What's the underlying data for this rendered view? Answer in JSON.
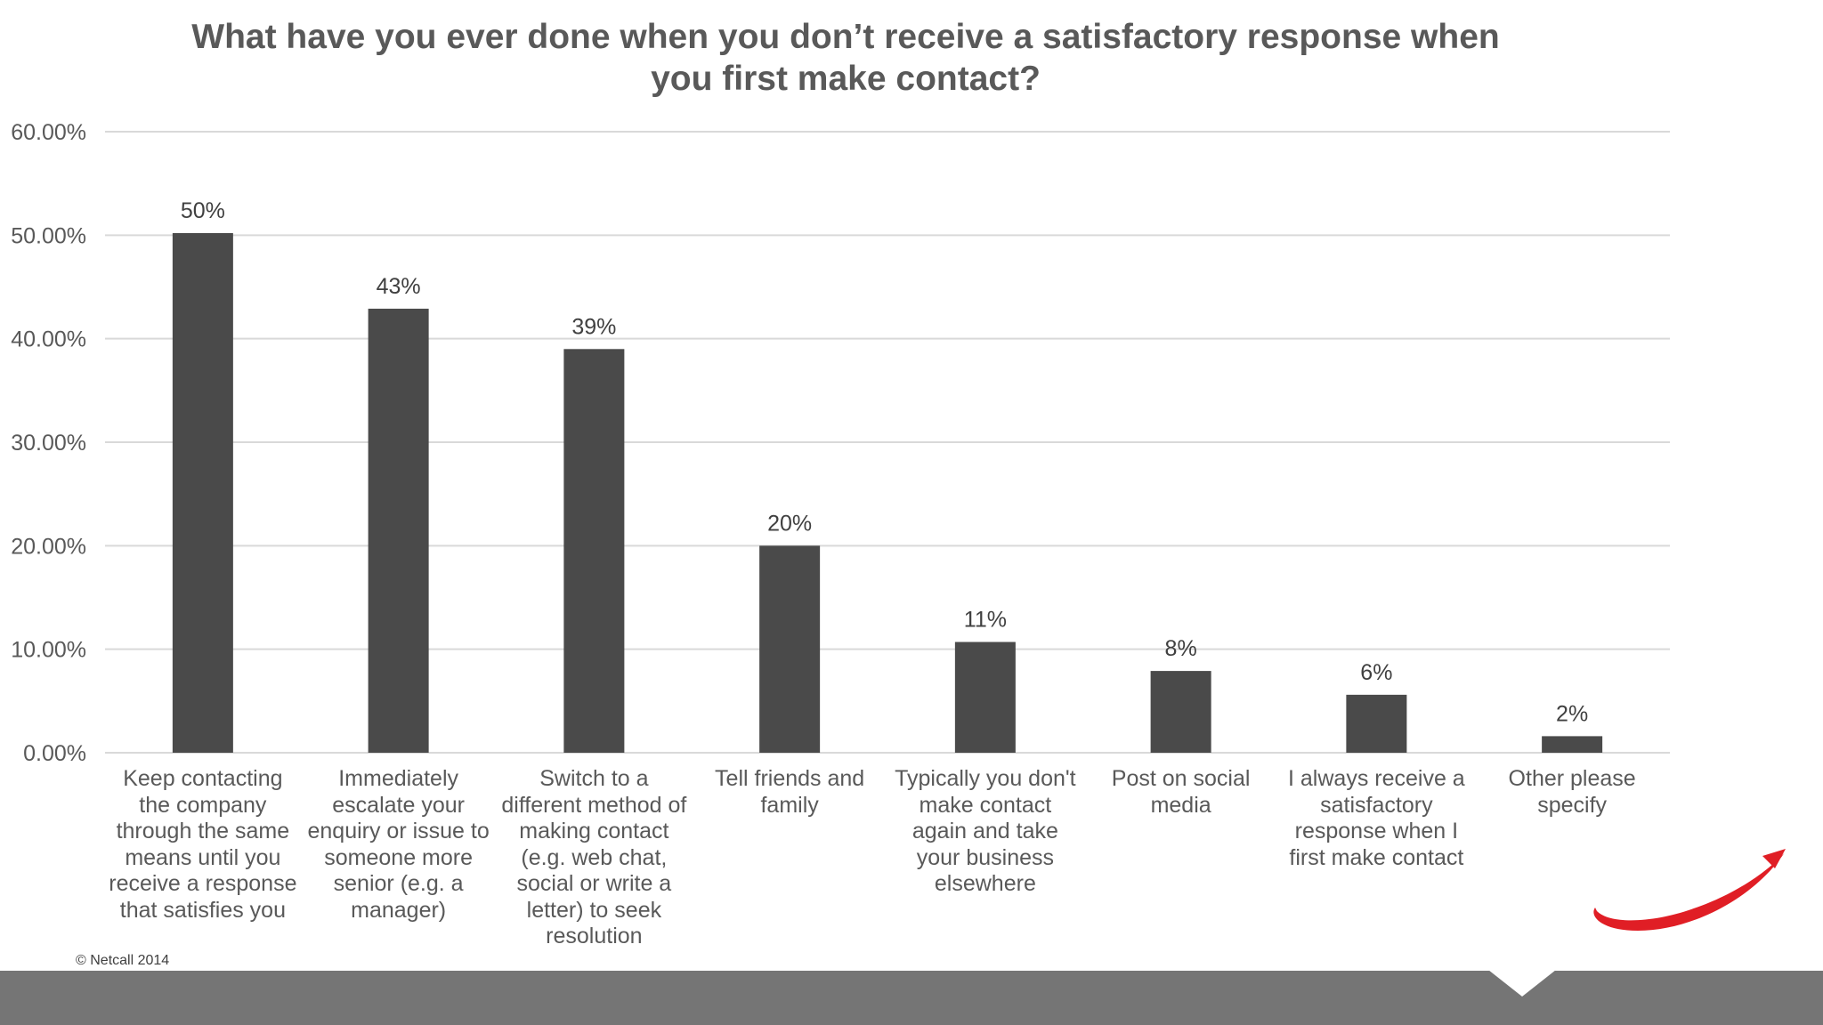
{
  "colors": {
    "bar": "#4a4a4a",
    "grid": "#d9d9d9",
    "text": "#595959",
    "footer": "#757575",
    "logo": "#e01e25"
  },
  "icons": {
    "logo": "netcall-swoosh-logo"
  },
  "footer": {
    "copyright": "© Netcall 2014"
  },
  "chart_data": {
    "type": "bar",
    "title_lines": [
      "What have you ever done when you don’t receive a satisfactory response when",
      "you first make contact?"
    ],
    "categories": [
      [
        "Keep contacting",
        "the company",
        "through the same",
        "means until you",
        "receive a response",
        "that satisfies you"
      ],
      [
        "Immediately",
        "escalate your",
        "enquiry or issue to",
        "someone more",
        "senior (e.g. a",
        "manager)"
      ],
      [
        "Switch to a",
        "different method of",
        "making contact",
        "(e.g. web chat,",
        "social or write a",
        "letter) to seek",
        "resolution"
      ],
      [
        "Tell friends and",
        "family"
      ],
      [
        "Typically you don't",
        "make contact",
        "again and take",
        "your business",
        "elsewhere"
      ],
      [
        "Post on social",
        "media"
      ],
      [
        "I always receive a",
        "satisfactory",
        "response when I",
        "first make contact"
      ],
      [
        "Other  please",
        "specify"
      ]
    ],
    "values": [
      50.2,
      42.9,
      39.0,
      20.0,
      10.7,
      7.9,
      5.6,
      1.6
    ],
    "data_labels": [
      "50%",
      "43%",
      "39%",
      "20%",
      "11%",
      "8%",
      "6%",
      "2%"
    ],
    "yticks": [
      0,
      10,
      20,
      30,
      40,
      50,
      60
    ],
    "ytick_labels": [
      "0.00%",
      "10.00%",
      "20.00%",
      "30.00%",
      "40.00%",
      "50.00%",
      "60.00%"
    ],
    "ylim": [
      0,
      60
    ],
    "grid": true,
    "legend": "none",
    "xlabel": "",
    "ylabel": ""
  }
}
